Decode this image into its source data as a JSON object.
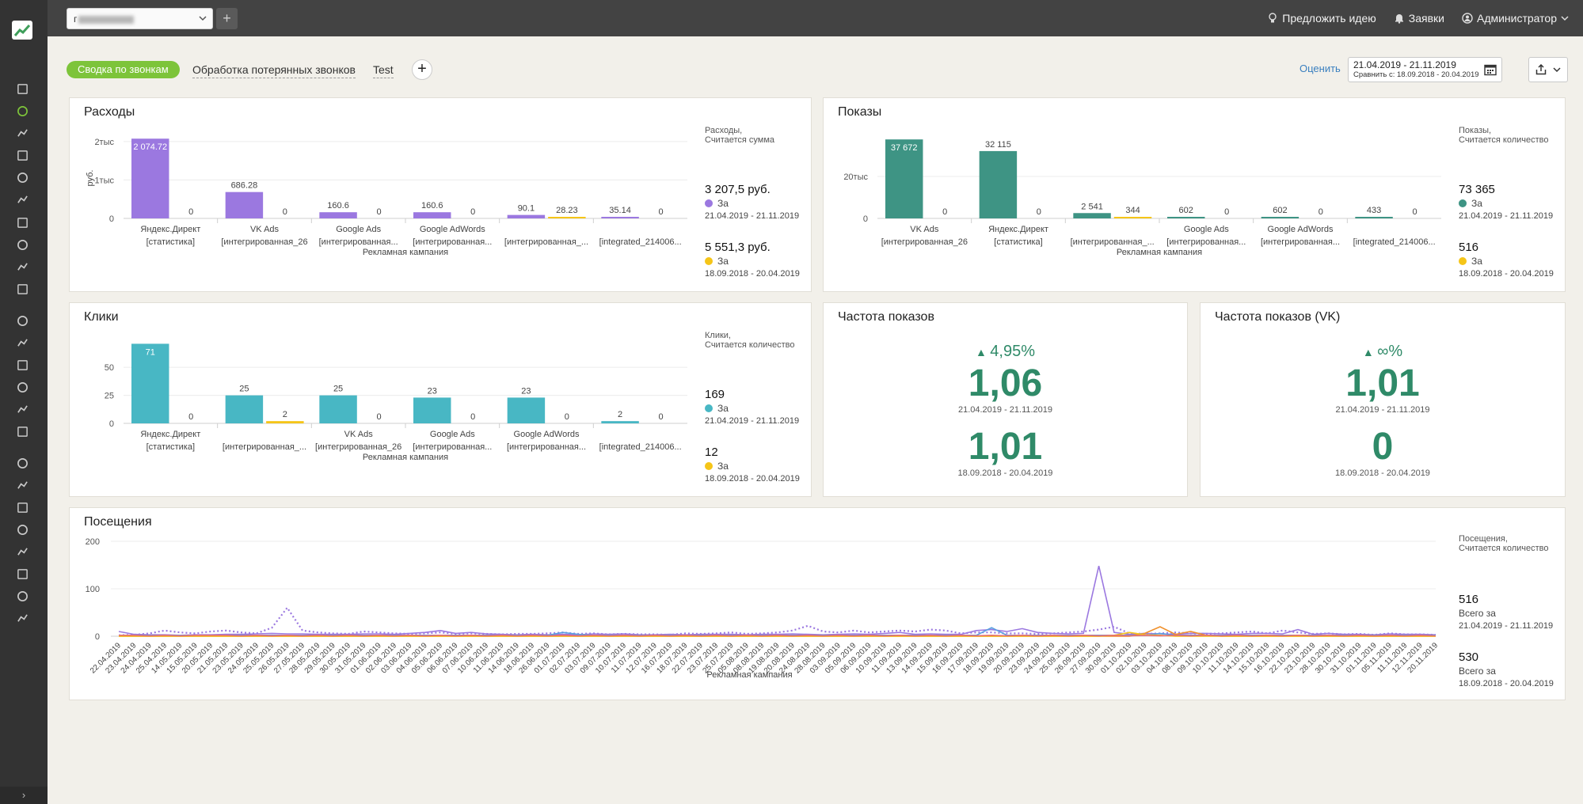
{
  "sidebar": {
    "icons": [
      "info-icon",
      "pie-chart-icon",
      "filter-icon",
      "chart-icon",
      "document-icon",
      "cart-icon",
      "network-icon",
      "layers-icon",
      "pulse-icon",
      "calendar-icon",
      "headset-icon",
      "refresh-icon",
      "flag-icon",
      "fingerprint-icon",
      "chat-icon",
      "download-icon",
      "table-icon",
      "users-icon",
      "image-icon",
      "clock-icon",
      "route-icon",
      "block-icon",
      "bell-icon",
      "calendar-2-icon"
    ],
    "expand_label": "›"
  },
  "topbar": {
    "project_value": "г",
    "add_label": "+",
    "suggest_label": "Предложить идею",
    "requests_label": "Заявки",
    "admin_label": "Администратор"
  },
  "tabs": {
    "active": "Сводка по звонкам",
    "items": [
      "Обработка потерянных звонков",
      "Test"
    ],
    "add_label": "+"
  },
  "toolbar": {
    "rate_label": "Оценить",
    "date_main": "21.04.2019 - 21.11.2019",
    "date_compare": "Сравнить с: 18.09.2018 - 20.04.2019"
  },
  "colors": {
    "green": "#7dc43a",
    "purple": "#9b78e0",
    "teal": "#3e9484",
    "cyan": "#48b7c4",
    "yellow": "#f5c518",
    "orange": "#f0902a",
    "blue": "#5aa0e0",
    "kpi_green": "#2f8a68"
  },
  "expenses": {
    "title": "Расходы",
    "legend_title": "Расходы,",
    "legend_sub": "Считается сумма",
    "current_value": "3 207,5 руб.",
    "current_label": "За",
    "current_range": "21.04.2019 - 21.11.2019",
    "prev_value": "5 551,3 руб.",
    "prev_label": "За",
    "prev_range": "18.09.2018 - 20.04.2019",
    "chart_data": {
      "type": "bar",
      "categories": [
        "Яндекс.Директ [статистика]",
        "VK Ads [интегрированная_26",
        "Google Ads [интегрированная...",
        "Google AdWords [интегрированная...",
        "[интегрированная_...",
        "[integrated_214006..."
      ],
      "category_lines": [
        [
          "Яндекс.Директ",
          "[статистика]"
        ],
        [
          "VK Ads",
          "[интегрированная_26"
        ],
        [
          "Google Ads",
          "[интегрированная..."
        ],
        [
          "Google AdWords",
          "[интегрированная..."
        ],
        [
          "",
          "[интегрированная_..."
        ],
        [
          "",
          "[integrated_214006..."
        ]
      ],
      "series": [
        {
          "values": [
            2074.72,
            686.28,
            160.6,
            160.6,
            90.1,
            35.14
          ]
        },
        {
          "values": [
            0,
            0,
            0,
            0,
            28.23,
            0
          ]
        }
      ],
      "value_labels": [
        [
          "2 074.72",
          "686.28",
          "160.6",
          "160.6",
          "90.1",
          "35.14"
        ],
        [
          "0",
          "0",
          "0",
          "0",
          "28.23",
          "0"
        ]
      ],
      "yticks": [
        {
          "v": 0,
          "label": "0"
        },
        {
          "v": 1000,
          "label": "1тыс"
        },
        {
          "v": 2000,
          "label": "2тыс"
        }
      ],
      "ylim": [
        0,
        2100
      ],
      "ylabel": "руб.",
      "xlabel": "Рекламная кампания"
    }
  },
  "impressions": {
    "title": "Показы",
    "legend_title": "Показы,",
    "legend_sub": "Считается количество",
    "current_value": "73 365",
    "current_label": "За",
    "current_range": "21.04.2019 - 21.11.2019",
    "prev_value": "516",
    "prev_label": "За",
    "prev_range": "18.09.2018 - 20.04.2019",
    "chart_data": {
      "type": "bar",
      "categories": [
        "VK Ads [интегрированная_26",
        "Яндекс.Директ [статистика]",
        "[интегрированная_...",
        "Google Ads [интегрированная...",
        "Google AdWords [интегрированная...",
        "[integrated_214006..."
      ],
      "category_lines": [
        [
          "VK Ads",
          "[интегрированная_26"
        ],
        [
          "Яндекс.Директ",
          "[статистика]"
        ],
        [
          "",
          "[интегрированная_..."
        ],
        [
          "Google Ads",
          "[интегрированная..."
        ],
        [
          "Google AdWords",
          "[интегрированная..."
        ],
        [
          "",
          "[integrated_214006..."
        ]
      ],
      "series": [
        {
          "values": [
            37672,
            32115,
            2541,
            602,
            602,
            433
          ]
        },
        {
          "values": [
            0,
            0,
            344,
            0,
            0,
            0
          ]
        }
      ],
      "value_labels": [
        [
          "37 672",
          "32 115",
          "2 541",
          "602",
          "602",
          "433"
        ],
        [
          "0",
          "0",
          "344",
          "0",
          "0",
          "0"
        ]
      ],
      "yticks": [
        {
          "v": 0,
          "label": "0"
        },
        {
          "v": 20000,
          "label": "20тыс"
        }
      ],
      "ylim": [
        0,
        38500
      ],
      "ylabel": "",
      "xlabel": "Рекламная кампания"
    }
  },
  "clicks": {
    "title": "Клики",
    "legend_title": "Клики,",
    "legend_sub": "Считается количество",
    "current_value": "169",
    "current_label": "За",
    "current_range": "21.04.2019 - 21.11.2019",
    "prev_value": "12",
    "prev_label": "За",
    "prev_range": "18.09.2018 - 20.04.2019",
    "chart_data": {
      "type": "bar",
      "categories": [
        "Яндекс.Директ [статистика]",
        "[интегрированная_...",
        "VK Ads [интегрированная_26",
        "Google Ads [интегрированная...",
        "Google AdWords [интегрированная...",
        "[integrated_214006..."
      ],
      "category_lines": [
        [
          "Яндекс.Директ",
          "[статистика]"
        ],
        [
          "",
          "[интегрированная_..."
        ],
        [
          "VK Ads",
          "[интегрированная_26"
        ],
        [
          "Google Ads",
          "[интегрированная..."
        ],
        [
          "Google AdWords",
          "[интегрированная..."
        ],
        [
          "",
          "[integrated_214006..."
        ]
      ],
      "series": [
        {
          "values": [
            71,
            25,
            25,
            23,
            23,
            2
          ]
        },
        {
          "values": [
            0,
            2,
            0,
            0,
            0,
            0
          ]
        }
      ],
      "value_labels": [
        [
          "71",
          "25",
          "25",
          "23",
          "23",
          "2"
        ],
        [
          "0",
          "2",
          "0",
          "0",
          "0",
          "0"
        ]
      ],
      "yticks": [
        {
          "v": 0,
          "label": "0"
        },
        {
          "v": 25,
          "label": "25"
        },
        {
          "v": 50,
          "label": "50"
        }
      ],
      "ylim": [
        0,
        72
      ],
      "ylabel": "",
      "xlabel": "Рекламная кампания"
    }
  },
  "freq": {
    "title": "Частота показов",
    "delta": "4,95%",
    "current": "1,06",
    "current_range": "21.04.2019 - 21.11.2019",
    "prev": "1,01",
    "prev_range": "18.09.2018 - 20.04.2019"
  },
  "freq_vk": {
    "title": "Частота показов (VK)",
    "delta": "∞%",
    "current": "1,01",
    "current_range": "21.04.2019 - 21.11.2019",
    "prev": "0",
    "prev_range": "18.09.2018 - 20.04.2019"
  },
  "visits": {
    "title": "Посещения",
    "legend_title": "Посещения,",
    "legend_sub": "Считается количество",
    "current_value": "516",
    "current_label": "Всего за",
    "current_range": "21.04.2019 - 21.11.2019",
    "prev_value": "530",
    "prev_label": "Всего за",
    "prev_range": "18.09.2018 - 20.04.2019",
    "chart_data": {
      "type": "line",
      "xlabel": "Рекламная кампания",
      "yticks": [
        {
          "v": 0,
          "label": "0"
        },
        {
          "v": 100,
          "label": "100"
        },
        {
          "v": 200,
          "label": "200"
        }
      ],
      "ylim": [
        0,
        200
      ],
      "x": [
        "22.04.2019",
        "23.04.2019",
        "24.04.2019",
        "25.04.2019",
        "14.05.2019",
        "15.05.2019",
        "20.05.2019",
        "21.05.2019",
        "23.05.2019",
        "24.05.2019",
        "25.05.2019",
        "26.05.2019",
        "27.05.2019",
        "28.05.2019",
        "29.05.2019",
        "30.05.2019",
        "31.05.2019",
        "01.06.2019",
        "02.06.2019",
        "03.06.2019",
        "04.06.2019",
        "05.06.2019",
        "06.06.2019",
        "07.06.2019",
        "10.06.2019",
        "11.06.2019",
        "14.06.2019",
        "18.06.2019",
        "26.06.2019",
        "01.07.2019",
        "02.07.2019",
        "03.07.2019",
        "09.07.2019",
        "10.07.2019",
        "11.07.2019",
        "12.07.2019",
        "16.07.2019",
        "18.07.2019",
        "22.07.2019",
        "23.07.2019",
        "25.07.2019",
        "05.08.2019",
        "08.08.2019",
        "19.08.2019",
        "20.08.2019",
        "24.08.2019",
        "28.08.2019",
        "03.09.2019",
        "05.09.2019",
        "06.09.2019",
        "10.09.2019",
        "11.09.2019",
        "13.09.2019",
        "14.09.2019",
        "15.09.2019",
        "16.09.2019",
        "17.09.2019",
        "18.09.2019",
        "19.09.2019",
        "20.09.2019",
        "23.09.2019",
        "24.09.2019",
        "25.09.2019",
        "26.09.2019",
        "27.09.2019",
        "30.09.2019",
        "01.10.2019",
        "02.10.2019",
        "03.10.2019",
        "04.10.2019",
        "08.10.2019",
        "09.10.2019",
        "10.10.2019",
        "11.10.2019",
        "14.10.2019",
        "15.10.2019",
        "16.10.2019",
        "22.10.2019",
        "23.10.2019",
        "28.10.2019",
        "30.10.2019",
        "31.10.2019",
        "01.11.2019",
        "05.11.2019",
        "11.11.2019",
        "12.11.2019",
        "20.11.2019"
      ],
      "series": [
        {
          "style": "solid",
          "color": "#9b78e0",
          "values": [
            10,
            4,
            3,
            3,
            2,
            3,
            3,
            4,
            4,
            5,
            6,
            5,
            5,
            4,
            4,
            4,
            5,
            5,
            4,
            6,
            8,
            12,
            6,
            8,
            5,
            4,
            3,
            4,
            3,
            4,
            3,
            5,
            4,
            5,
            3,
            3,
            4,
            3,
            4,
            4,
            4,
            3,
            4,
            4,
            5,
            4,
            3,
            4,
            5,
            4,
            6,
            8,
            4,
            5,
            4,
            4,
            12,
            14,
            10,
            16,
            8,
            6,
            5,
            6,
            148,
            8,
            4,
            6,
            5,
            4,
            6,
            6,
            5,
            4,
            6,
            6,
            5,
            14,
            4,
            6,
            4,
            4,
            3,
            5,
            4,
            4,
            3
          ]
        },
        {
          "style": "dotted",
          "color": "#9b78e0",
          "values": [
            2,
            3,
            6,
            12,
            8,
            6,
            10,
            12,
            8,
            6,
            18,
            60,
            12,
            8,
            6,
            5,
            10,
            8,
            6,
            5,
            6,
            8,
            5,
            6,
            5,
            4,
            5,
            5,
            6,
            8,
            5,
            6,
            4,
            5,
            4,
            4,
            3,
            6,
            5,
            6,
            8,
            5,
            6,
            8,
            12,
            22,
            10,
            8,
            12,
            8,
            10,
            12,
            10,
            14,
            12,
            6,
            8,
            8,
            6,
            6,
            5,
            6,
            8,
            10,
            14,
            20,
            6,
            5,
            6,
            8,
            6,
            5,
            6,
            8,
            10,
            6,
            12,
            8,
            5,
            6,
            4,
            5,
            3,
            6,
            4,
            4,
            3
          ]
        },
        {
          "style": "solid",
          "color": "#5aa0e0",
          "values": [
            2,
            2,
            2,
            2,
            2,
            2,
            2,
            2,
            2,
            2,
            2,
            2,
            2,
            2,
            2,
            2,
            2,
            2,
            2,
            2,
            2,
            2,
            2,
            2,
            2,
            2,
            2,
            2,
            2,
            8,
            4,
            2,
            2,
            2,
            2,
            2,
            2,
            2,
            2,
            2,
            2,
            2,
            2,
            2,
            2,
            2,
            2,
            2,
            2,
            2,
            2,
            2,
            2,
            2,
            2,
            2,
            2,
            18,
            2,
            2,
            2,
            2,
            2,
            2,
            2,
            2,
            2,
            2,
            6,
            2,
            2,
            2,
            2,
            2,
            2,
            2,
            2,
            2,
            2,
            2,
            2,
            2,
            2,
            2,
            2,
            2,
            2
          ]
        },
        {
          "style": "solid",
          "color": "#f0902a",
          "values": [
            0,
            0,
            0,
            0,
            0,
            0,
            0,
            0,
            0,
            0,
            0,
            0,
            0,
            0,
            0,
            0,
            0,
            0,
            0,
            0,
            0,
            0,
            0,
            0,
            0,
            0,
            0,
            0,
            0,
            0,
            0,
            0,
            0,
            0,
            0,
            0,
            0,
            0,
            0,
            0,
            0,
            0,
            0,
            0,
            0,
            0,
            0,
            0,
            0,
            0,
            0,
            0,
            0,
            0,
            0,
            0,
            0,
            0,
            0,
            0,
            0,
            0,
            0,
            0,
            0,
            0,
            0,
            6,
            20,
            4,
            10,
            2,
            0,
            0,
            0,
            0,
            0,
            0,
            0,
            0,
            0,
            0,
            0,
            0,
            0,
            0,
            0
          ]
        },
        {
          "style": "solid",
          "color": "#f5c518",
          "values": [
            0,
            0,
            0,
            0,
            0,
            0,
            0,
            0,
            0,
            0,
            0,
            0,
            0,
            0,
            0,
            0,
            0,
            0,
            0,
            0,
            0,
            0,
            0,
            0,
            0,
            0,
            0,
            0,
            0,
            0,
            0,
            0,
            0,
            0,
            0,
            0,
            0,
            0,
            0,
            0,
            0,
            0,
            0,
            0,
            0,
            0,
            0,
            0,
            0,
            0,
            0,
            0,
            0,
            0,
            0,
            0,
            0,
            0,
            0,
            0,
            0,
            0,
            0,
            0,
            0,
            2,
            8,
            3,
            2,
            0,
            0,
            0,
            0,
            0,
            0,
            0,
            0,
            0,
            0,
            0,
            0,
            0,
            0,
            0,
            0,
            0,
            0
          ]
        },
        {
          "style": "solid",
          "color": "#e76f6f",
          "values": [
            2,
            2,
            1,
            2,
            1,
            2,
            2,
            2,
            1,
            2,
            1,
            2,
            1,
            2,
            1,
            2,
            1,
            2,
            1,
            2,
            1,
            2,
            1,
            2,
            1,
            2,
            1,
            2,
            1,
            2,
            1,
            2,
            1,
            2,
            1,
            2,
            1,
            2,
            1,
            2,
            1,
            2,
            1,
            2,
            1,
            2,
            1,
            2,
            1,
            2,
            1,
            2,
            1,
            2,
            1,
            2,
            1,
            2,
            1,
            2,
            1,
            2,
            1,
            2,
            1,
            2,
            1,
            2,
            1,
            2,
            1,
            2,
            1,
            2,
            1,
            2,
            1,
            2,
            1,
            2,
            1,
            2,
            1,
            2,
            1,
            2,
            1
          ]
        }
      ]
    }
  }
}
